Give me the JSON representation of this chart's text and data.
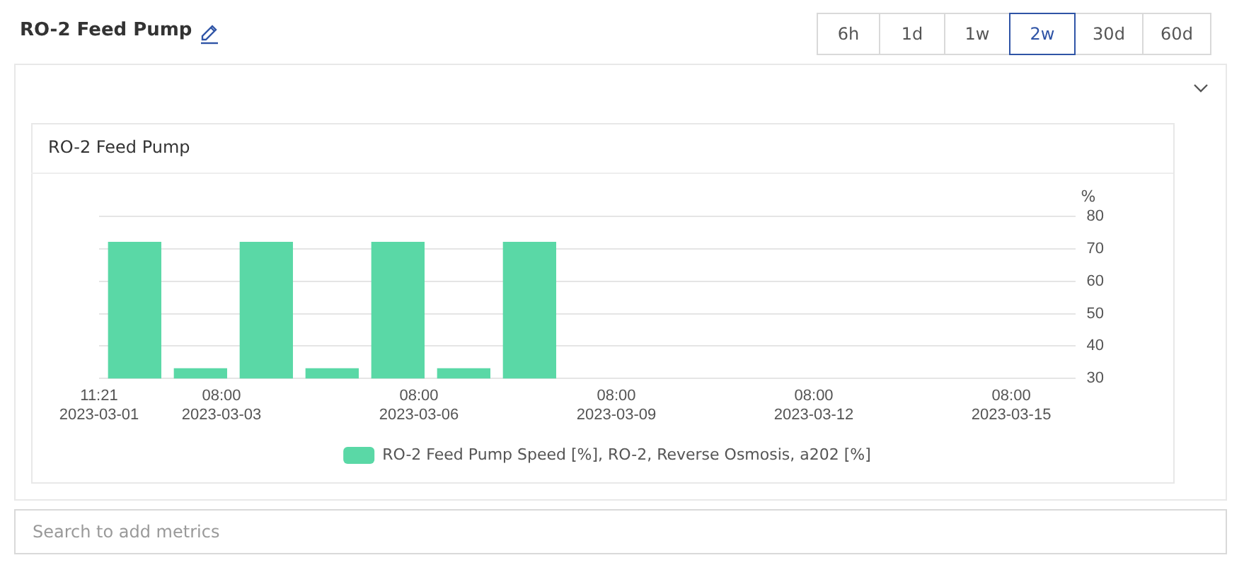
{
  "chart_data": {
    "type": "bar",
    "title": "RO-2 Feed Pump",
    "ylabel": "%",
    "annotations": [
      "RO-2 Feed Pump",
      "6h",
      "1d",
      "1w",
      "2w",
      "30d",
      "60d",
      "Search to add metrics"
    ],
    "x": [
      "2023-03-02T00:20",
      "2023-03-03T00:20",
      "2023-03-04T00:20",
      "2023-03-05T00:20",
      "2023-03-06T00:20",
      "2023-03-07T00:20",
      "2023-03-08T00:20"
    ],
    "series": [
      {
        "name": "RO-2 Feed Pump Speed [%], RO-2, Reverse Osmosis, a202 [%]",
        "color": "#5ad8a6",
        "values": [
          72,
          33,
          72,
          33,
          72,
          33,
          72
        ]
      }
    ],
    "xlim": [
      "2023-03-01T11:21",
      "2023-03-16T07:20"
    ],
    "xticks": [
      {
        "value": "2023-03-01T11:21",
        "label": "11:21\n2023-03-01"
      },
      {
        "value": "2023-03-03T08:00",
        "label": "08:00\n2023-03-03"
      },
      {
        "value": "2023-03-06T08:00",
        "label": "08:00\n2023-03-06"
      },
      {
        "value": "2023-03-09T08:00",
        "label": "08:00\n2023-03-09"
      },
      {
        "value": "2023-03-12T08:00",
        "label": "08:00\n2023-03-12"
      },
      {
        "value": "2023-03-15T08:00",
        "label": "08:00\n2023-03-15"
      }
    ],
    "ylim": [
      30,
      80
    ],
    "yticks": [
      30,
      40,
      50,
      60,
      70,
      80
    ],
    "grid": "y",
    "legend": "bottom"
  }
}
